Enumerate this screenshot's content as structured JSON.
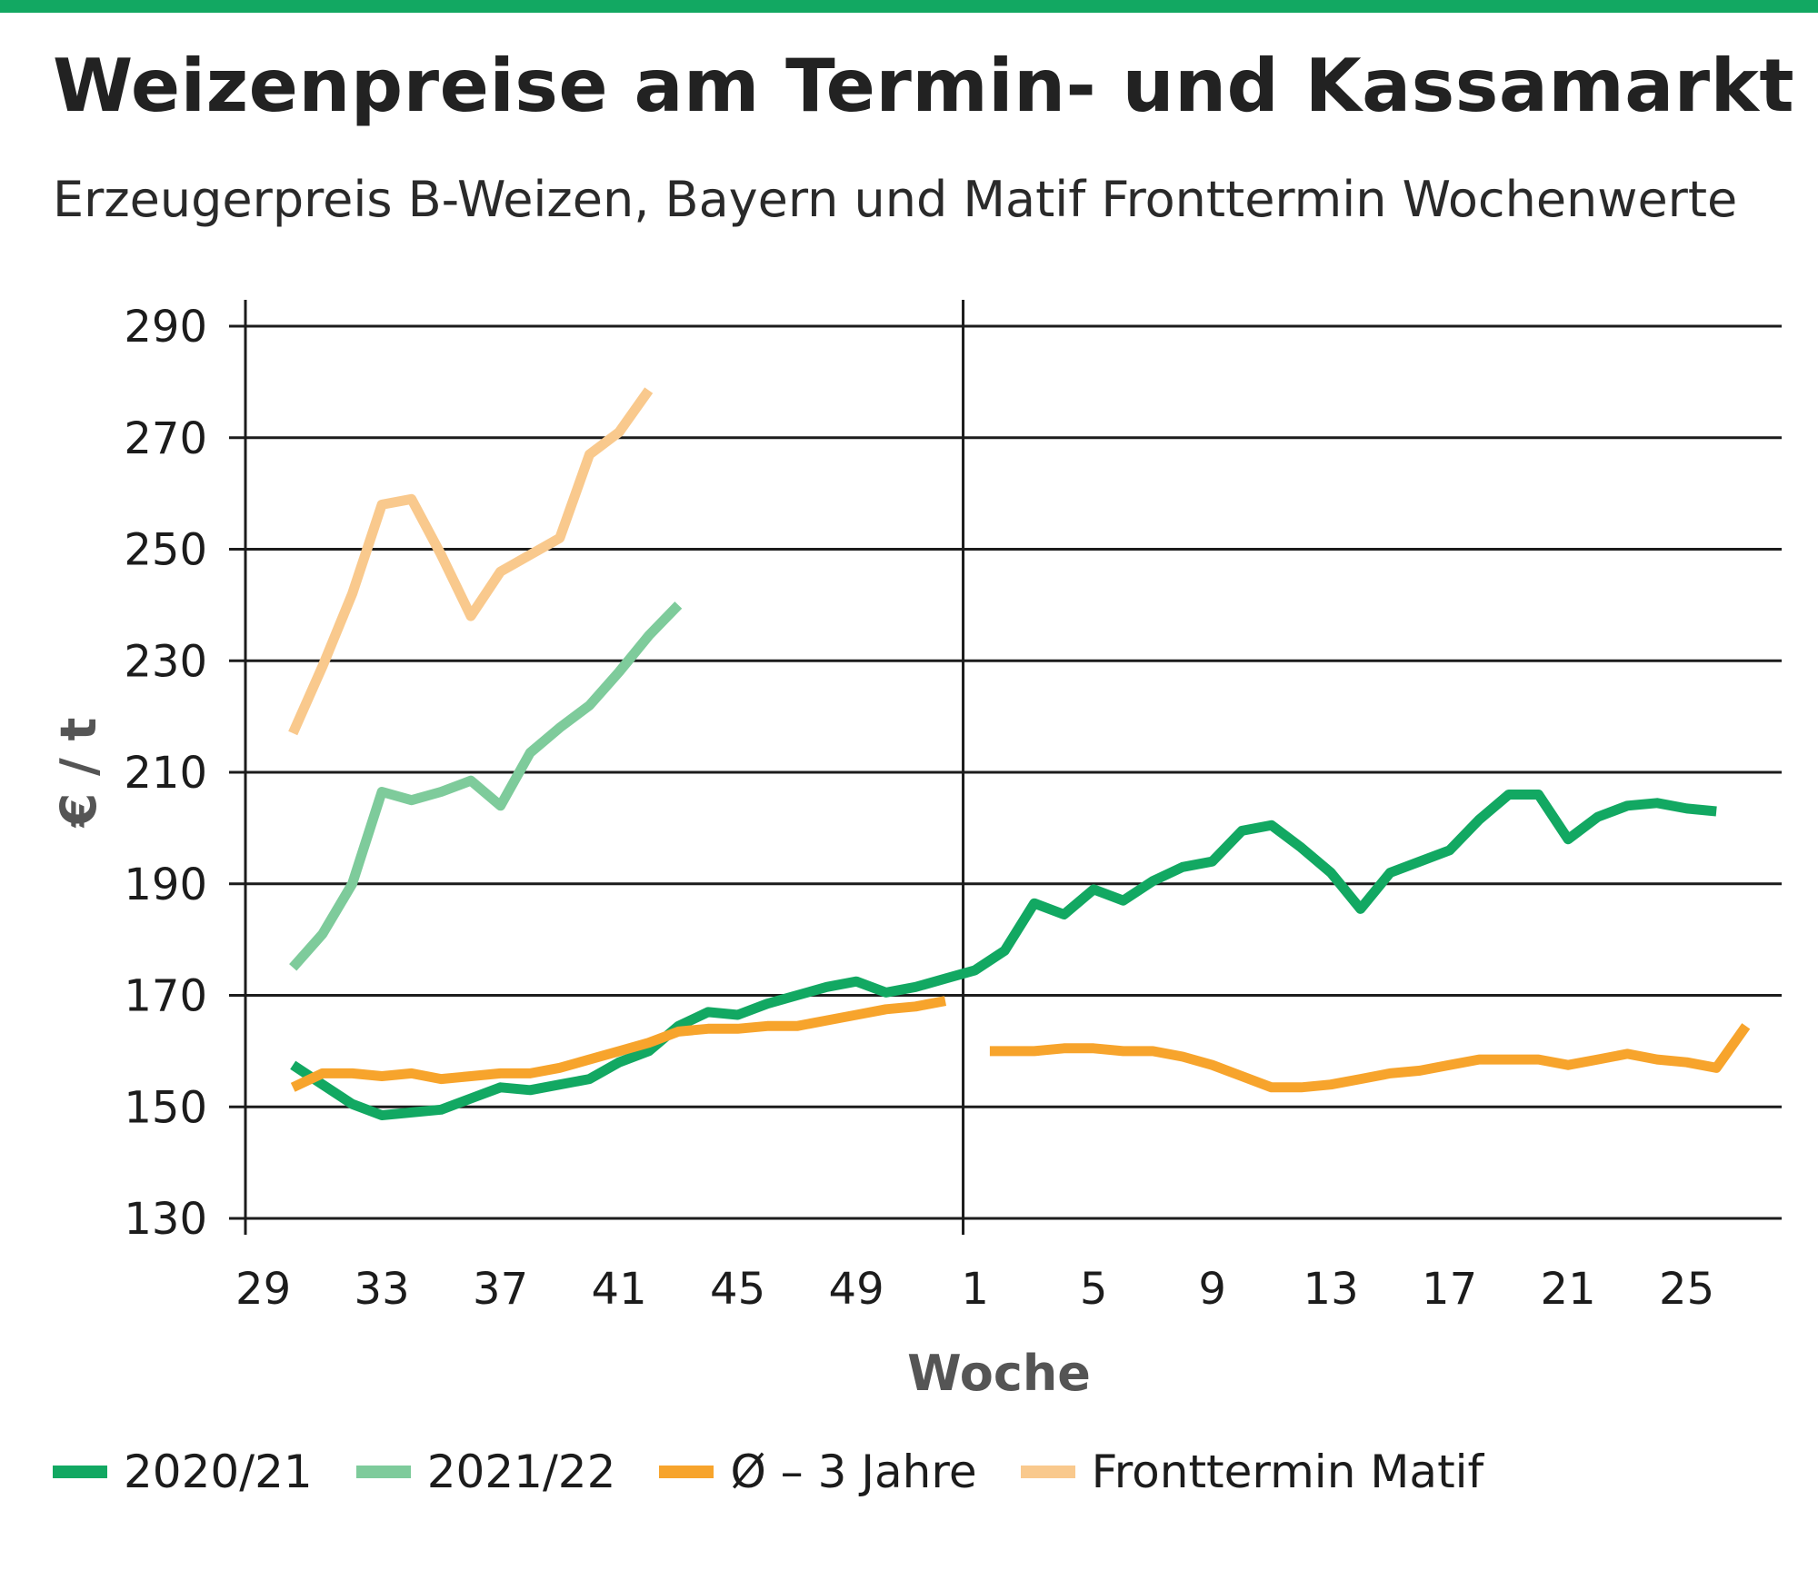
{
  "header": {
    "title": "Weizenpreise am Termin- und Kassamarkt",
    "subtitle": "Erzeugerpreis B-Weizen, Bayern und Matif Fronttermin Wochenwerte"
  },
  "colors": {
    "topbar": "#12a862",
    "s2020": "#12a862",
    "s2021": "#7ecb9b",
    "avg3": "#f7a42c",
    "matif": "#f9c98d",
    "grid": "#1c1c1c"
  },
  "chart_data": {
    "type": "line",
    "ylabel": "€ / t",
    "xlabel": "Woche",
    "ylim": [
      130,
      290
    ],
    "yticks": [
      290,
      270,
      250,
      230,
      210,
      190,
      170,
      150,
      130
    ],
    "x_tick_labels": [
      "29",
      "33",
      "37",
      "41",
      "45",
      "49",
      "1",
      "5",
      "9",
      "13",
      "17",
      "21",
      "25"
    ],
    "x_tick_positions": [
      29,
      33,
      37,
      41,
      45,
      49,
      53,
      57,
      61,
      65,
      69,
      73,
      77
    ],
    "x_axis_note": "positions are sequential marketing-year weeks: 29..52 then 1..26 shown as 53..78",
    "xlim": [
      28.4,
      80.2
    ],
    "divider_x": 52.6,
    "grid": true,
    "legend_position": "bottom",
    "series": [
      {
        "name": "2020/21",
        "color": "#12a862",
        "segments": [
          [
            [
              30,
              157.5
            ],
            [
              31,
              154
            ],
            [
              32,
              150.5
            ],
            [
              33,
              148.5
            ],
            [
              34,
              149
            ],
            [
              35,
              149.5
            ],
            [
              36,
              151.5
            ],
            [
              37,
              153.5
            ],
            [
              38,
              153
            ],
            [
              39,
              154
            ],
            [
              40,
              155
            ],
            [
              41,
              158
            ],
            [
              42,
              160
            ],
            [
              43,
              164.5
            ],
            [
              44,
              167
            ],
            [
              45,
              166.5
            ],
            [
              46,
              168.5
            ],
            [
              47,
              170
            ],
            [
              48,
              171.5
            ],
            [
              49,
              172.5
            ],
            [
              50,
              170.5
            ],
            [
              51,
              171.5
            ],
            [
              52,
              173
            ],
            [
              53,
              174.5
            ],
            [
              54,
              178
            ],
            [
              55,
              186.5
            ],
            [
              56,
              184.5
            ],
            [
              57,
              189
            ],
            [
              58,
              187
            ],
            [
              59,
              190.5
            ],
            [
              60,
              193
            ],
            [
              61,
              194
            ],
            [
              62,
              199.5
            ],
            [
              63,
              200.5
            ],
            [
              64,
              196.5
            ],
            [
              65,
              192
            ],
            [
              66,
              185.5
            ],
            [
              67,
              192
            ],
            [
              68,
              194
            ],
            [
              69,
              196
            ],
            [
              70,
              201.5
            ],
            [
              71,
              206
            ],
            [
              72,
              206
            ],
            [
              73,
              198
            ],
            [
              74,
              202
            ],
            [
              75,
              204
            ],
            [
              76,
              204.5
            ],
            [
              77,
              203.5
            ],
            [
              78,
              203
            ]
          ]
        ]
      },
      {
        "name": "2021/22",
        "color": "#7ecb9b",
        "segments": [
          [
            [
              30,
              175
            ],
            [
              31,
              181
            ],
            [
              32,
              190
            ],
            [
              33,
              206.5
            ],
            [
              34,
              205
            ],
            [
              35,
              206.5
            ],
            [
              36,
              208.5
            ],
            [
              37,
              204
            ],
            [
              38,
              213.5
            ],
            [
              39,
              218
            ],
            [
              40,
              222
            ],
            [
              41,
              228
            ],
            [
              42,
              234.5
            ],
            [
              43,
              240
            ]
          ]
        ]
      },
      {
        "name": "Ø – 3 Jahre",
        "color": "#f7a42c",
        "segments": [
          [
            [
              30,
              153.5
            ],
            [
              31,
              156
            ],
            [
              32,
              156
            ],
            [
              33,
              155.5
            ],
            [
              34,
              156
            ],
            [
              35,
              155
            ],
            [
              36,
              155.5
            ],
            [
              37,
              156
            ],
            [
              38,
              156
            ],
            [
              39,
              157
            ],
            [
              40,
              158.5
            ],
            [
              41,
              160
            ],
            [
              42,
              161.5
            ],
            [
              43,
              163.5
            ],
            [
              44,
              164
            ],
            [
              45,
              164
            ],
            [
              46,
              164.5
            ],
            [
              47,
              164.5
            ],
            [
              48,
              165.5
            ],
            [
              49,
              166.5
            ],
            [
              50,
              167.5
            ],
            [
              51,
              168
            ],
            [
              52,
              169
            ]
          ],
          [
            [
              53.5,
              160
            ],
            [
              54,
              160
            ],
            [
              55,
              160
            ],
            [
              56,
              160.5
            ],
            [
              57,
              160.5
            ],
            [
              58,
              160
            ],
            [
              59,
              160
            ],
            [
              60,
              159
            ],
            [
              61,
              157.5
            ],
            [
              62,
              155.5
            ],
            [
              63,
              153.5
            ],
            [
              64,
              153.5
            ],
            [
              65,
              154
            ],
            [
              66,
              155
            ],
            [
              67,
              156
            ],
            [
              68,
              156.5
            ],
            [
              69,
              157.5
            ],
            [
              70,
              158.5
            ],
            [
              71,
              158.5
            ],
            [
              72,
              158.5
            ],
            [
              73,
              157.5
            ],
            [
              74,
              158.5
            ],
            [
              75,
              159.5
            ],
            [
              76,
              158.5
            ],
            [
              77,
              158
            ],
            [
              78,
              157
            ],
            [
              79,
              164.5
            ]
          ]
        ]
      },
      {
        "name": "Fronttermin Matif",
        "color": "#f9c98d",
        "segments": [
          [
            [
              30,
              217
            ],
            [
              31,
              229
            ],
            [
              32,
              242
            ],
            [
              33,
              258
            ],
            [
              34,
              259
            ],
            [
              35,
              249
            ],
            [
              36,
              238
            ],
            [
              37,
              246
            ],
            [
              38,
              249
            ],
            [
              39,
              252
            ],
            [
              40,
              267
            ],
            [
              41,
              271
            ],
            [
              42,
              278.5
            ]
          ]
        ]
      }
    ]
  },
  "legend": [
    {
      "label": "2020/21",
      "color": "#12a862"
    },
    {
      "label": "2021/22",
      "color": "#7ecb9b"
    },
    {
      "label": "Ø – 3 Jahre",
      "color": "#f7a42c"
    },
    {
      "label": "Fronttermin Matif",
      "color": "#f9c98d"
    }
  ]
}
